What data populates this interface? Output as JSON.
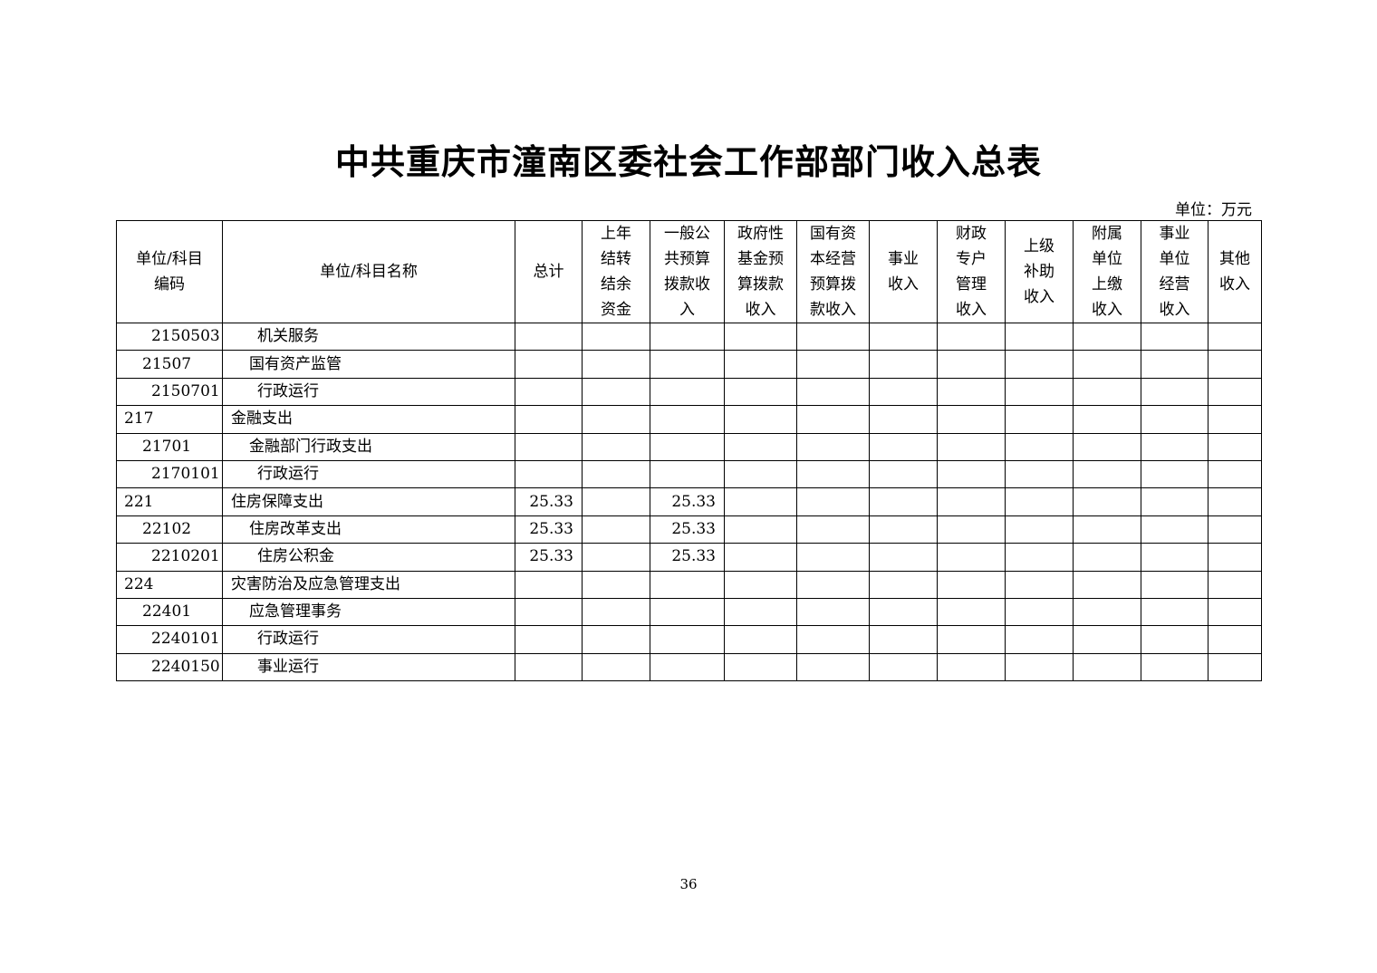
{
  "title": "中共重庆市潼南区委社会工作部部门收入总表",
  "unit": "单位：万元",
  "columns": [
    "单位/科目\n编码",
    "单位/科目名称",
    "总计",
    "上年\n结转\n结余\n资金",
    "一般公\n共预算\n拨款收\n入",
    "政府性\n基金预\n算拨款\n收入",
    "国有资\n本经营\n预算拨\n款收入",
    "事业\n收入",
    "财政\n专户\n管理\n收入",
    "上级\n补助\n收入",
    "附属\n单位\n上缴\n收入",
    "事业\n单位\n经营\n收入",
    "其他\n收入"
  ],
  "rows": [
    {
      "level": 3,
      "code": "2150503",
      "name": "机关服务",
      "total": "",
      "general": ""
    },
    {
      "level": 2,
      "code": "21507",
      "name": "国有资产监管",
      "total": "",
      "general": ""
    },
    {
      "level": 3,
      "code": "2150701",
      "name": "行政运行",
      "total": "",
      "general": ""
    },
    {
      "level": 1,
      "code": "217",
      "name": "金融支出",
      "total": "",
      "general": ""
    },
    {
      "level": 2,
      "code": "21701",
      "name": "金融部门行政支出",
      "total": "",
      "general": ""
    },
    {
      "level": 3,
      "code": "2170101",
      "name": "行政运行",
      "total": "",
      "general": ""
    },
    {
      "level": 1,
      "code": "221",
      "name": "住房保障支出",
      "total": "25.33",
      "general": "25.33"
    },
    {
      "level": 2,
      "code": "22102",
      "name": "住房改革支出",
      "total": "25.33",
      "general": "25.33"
    },
    {
      "level": 3,
      "code": "2210201",
      "name": "住房公积金",
      "total": "25.33",
      "general": "25.33"
    },
    {
      "level": 1,
      "code": "224",
      "name": "灾害防治及应急管理支出",
      "total": "",
      "general": ""
    },
    {
      "level": 2,
      "code": "22401",
      "name": "应急管理事务",
      "total": "",
      "general": ""
    },
    {
      "level": 3,
      "code": "2240101",
      "name": "行政运行",
      "total": "",
      "general": ""
    },
    {
      "level": 3,
      "code": "2240150",
      "name": "事业运行",
      "total": "",
      "general": ""
    }
  ],
  "page_number": "36"
}
